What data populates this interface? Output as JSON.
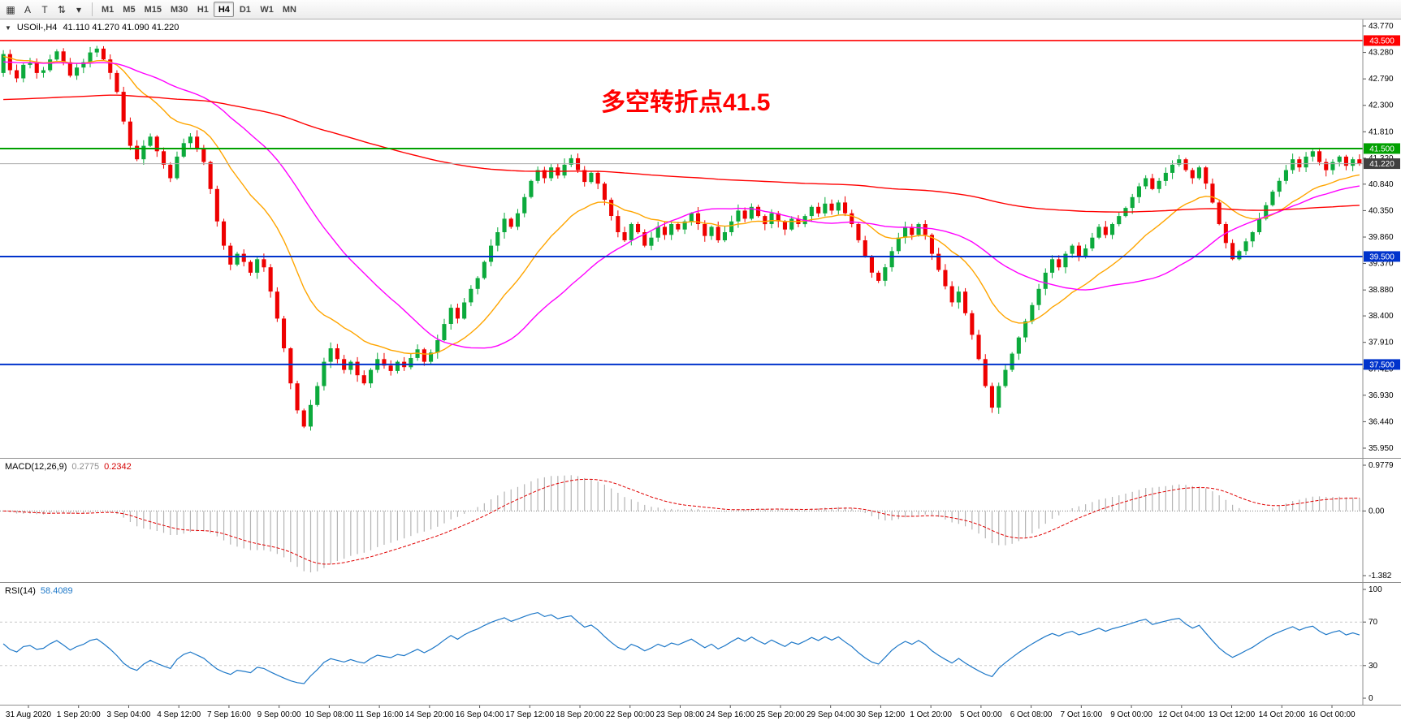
{
  "toolbar": {
    "left_tools": [
      {
        "name": "chart-windows-icon",
        "glyph": "▦"
      },
      {
        "name": "annotate-letter-a-icon",
        "glyph": "A"
      },
      {
        "name": "text-tool-icon",
        "glyph": "T"
      },
      {
        "name": "vertical-scale-arrows-icon",
        "glyph": "⇅"
      },
      {
        "name": "tools-dropdown-caret-icon",
        "glyph": "▾"
      }
    ],
    "timeframes": [
      "M1",
      "M5",
      "M15",
      "M30",
      "H1",
      "H4",
      "D1",
      "W1",
      "MN"
    ],
    "active_timeframe": "H4"
  },
  "main_chart": {
    "header": {
      "menu_glyph": "▼",
      "symbol_text": "USOil-,H4",
      "ohlc_text": "41.110 41.270 41.090 41.220"
    },
    "annotation": {
      "text": "多空转折点41.5",
      "color": "#FF0000"
    },
    "levels": [
      {
        "price": 43.5,
        "label": "43.500",
        "color": "#FF0000",
        "line_width": 1.6
      },
      {
        "price": 41.5,
        "label": "41.500",
        "color": "#00A000",
        "line_width": 2
      },
      {
        "price": 41.22,
        "label": "41.220",
        "color": "#404040",
        "line_color": "#ABABAB",
        "badge_color": "#404040",
        "line_width": 1
      },
      {
        "price": 39.5,
        "label": "39.500",
        "color": "#0033CC",
        "line_width": 2
      },
      {
        "price": 37.5,
        "label": "37.500",
        "color": "#0033CC",
        "line_width": 2
      }
    ],
    "y_range": [
      35.95,
      43.77
    ],
    "y_ticks": [
      43.77,
      43.28,
      42.79,
      42.3,
      41.81,
      41.32,
      40.84,
      40.35,
      39.86,
      39.37,
      38.88,
      38.4,
      37.91,
      37.42,
      36.93,
      36.44,
      35.95
    ]
  },
  "macd_panel": {
    "name_label": "MACD(12,26,9)",
    "main_value": "0.2775",
    "signal_value": "0.2342",
    "y_max": 0.9779,
    "y_min": -1.382,
    "y_ticks": [
      {
        "v": 0.9779,
        "label": "0.9779"
      },
      {
        "v": 0,
        "label": "0.00"
      },
      {
        "v": -1.382,
        "label": "-1.382"
      }
    ]
  },
  "rsi_panel": {
    "name_label": "RSI(14)",
    "value": "58.4089",
    "levels": [
      70,
      30
    ],
    "y_ticks": [
      {
        "v": 100,
        "label": "100"
      },
      {
        "v": 70,
        "label": "70"
      },
      {
        "v": 30,
        "label": "30"
      },
      {
        "v": 0,
        "label": "0"
      }
    ]
  },
  "time_axis": {
    "labels": [
      "31 Aug 2020",
      "1 Sep 20:00",
      "3 Sep 04:00",
      "4 Sep 12:00",
      "7 Sep 16:00",
      "9 Sep 00:00",
      "10 Sep 08:00",
      "11 Sep 16:00",
      "14 Sep 20:00",
      "16 Sep 04:00",
      "17 Sep 12:00",
      "18 Sep 20:00",
      "22 Sep 00:00",
      "23 Sep 08:00",
      "24 Sep 16:00",
      "25 Sep 20:00",
      "29 Sep 04:00",
      "30 Sep 12:00",
      "1 Oct 20:00",
      "5 Oct 00:00",
      "6 Oct 08:00",
      "7 Oct 16:00",
      "9 Oct 00:00",
      "12 Oct 04:00",
      "13 Oct 12:00",
      "14 Oct 20:00",
      "16 Oct 00:00"
    ]
  },
  "chart_data": {
    "type": "candlestick",
    "symbol": "USOil",
    "timeframe": "H4",
    "ohlc_current": {
      "open": 41.11,
      "high": 41.27,
      "low": 41.09,
      "close": 41.22
    },
    "first_open": 42.9,
    "closes": [
      43.25,
      42.95,
      42.8,
      43.05,
      43.1,
      42.9,
      42.95,
      43.15,
      43.3,
      43.1,
      42.85,
      43.0,
      43.1,
      43.28,
      43.35,
      43.15,
      42.9,
      42.55,
      42.0,
      41.55,
      41.3,
      41.55,
      41.72,
      41.45,
      41.2,
      40.95,
      41.35,
      41.6,
      41.72,
      41.5,
      41.25,
      40.75,
      40.15,
      39.7,
      39.35,
      39.55,
      39.4,
      39.2,
      39.45,
      39.3,
      38.85,
      38.35,
      37.8,
      37.15,
      36.65,
      36.35,
      36.75,
      37.1,
      37.55,
      37.8,
      37.6,
      37.4,
      37.55,
      37.3,
      37.15,
      37.4,
      37.6,
      37.48,
      37.38,
      37.55,
      37.45,
      37.62,
      37.78,
      37.55,
      37.72,
      37.95,
      38.25,
      38.55,
      38.35,
      38.65,
      38.9,
      39.1,
      39.4,
      39.7,
      39.95,
      40.2,
      40.05,
      40.3,
      40.6,
      40.9,
      41.1,
      40.95,
      41.15,
      41.0,
      41.2,
      41.32,
      41.1,
      40.88,
      41.05,
      40.85,
      40.55,
      40.25,
      39.95,
      39.8,
      40.1,
      39.95,
      39.7,
      39.85,
      40.05,
      39.9,
      40.1,
      40.0,
      40.15,
      40.3,
      40.1,
      39.88,
      40.05,
      39.8,
      39.95,
      40.15,
      40.35,
      40.2,
      40.42,
      40.25,
      40.1,
      40.3,
      40.15,
      40.0,
      40.2,
      40.1,
      40.25,
      40.42,
      40.3,
      40.48,
      40.35,
      40.5,
      40.3,
      40.1,
      39.8,
      39.5,
      39.2,
      39.05,
      39.3,
      39.6,
      39.85,
      40.05,
      39.9,
      40.1,
      39.9,
      39.55,
      39.25,
      38.95,
      38.65,
      38.85,
      38.45,
      38.05,
      37.6,
      37.1,
      36.7,
      37.1,
      37.4,
      37.7,
      38.0,
      38.3,
      38.6,
      38.9,
      39.2,
      39.45,
      39.3,
      39.55,
      39.7,
      39.5,
      39.65,
      39.85,
      40.05,
      39.9,
      40.1,
      40.25,
      40.4,
      40.6,
      40.8,
      40.95,
      40.75,
      40.9,
      41.05,
      41.2,
      41.3,
      41.1,
      40.95,
      41.15,
      40.85,
      40.5,
      40.1,
      39.75,
      39.45,
      39.6,
      39.78,
      39.95,
      40.2,
      40.45,
      40.7,
      40.9,
      41.1,
      41.3,
      41.15,
      41.35,
      41.45,
      41.25,
      41.1,
      41.25,
      41.35,
      41.18,
      41.3,
      41.22
    ],
    "moving_averages": [
      {
        "name": "ma-fast-orange",
        "type": "ema",
        "period": 18,
        "seed": 43.2,
        "color": "#FFA500",
        "width": 1.4
      },
      {
        "name": "ma-mid-magenta",
        "type": "sma",
        "period": 34,
        "seed": 43.1,
        "color": "#FF00FF",
        "width": 1.4
      },
      {
        "name": "ma-slow-red",
        "type": "ema",
        "period": 240,
        "seed": 42.4,
        "color": "#FF0000",
        "width": 1.4
      }
    ],
    "colors": {
      "candle_up": "#0CAA3C",
      "candle_down": "#EE0000",
      "macd_histogram": "#B4B4B4",
      "macd_signal": "#E00000",
      "rsi_line": "#1E78C8"
    },
    "indicators": {
      "macd": {
        "fast": 12,
        "slow": 26,
        "signal": 9
      },
      "rsi": {
        "period": 14
      }
    }
  }
}
